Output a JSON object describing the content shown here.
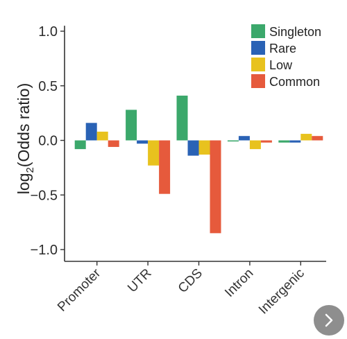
{
  "chart_data": {
    "type": "bar",
    "categories": [
      "Promoter",
      "UTR",
      "CDS",
      "Intron",
      "Intergenic"
    ],
    "series": [
      {
        "name": "Singleton",
        "color": "#3ba86b",
        "values": [
          -0.08,
          0.28,
          0.41,
          -0.01,
          -0.02
        ]
      },
      {
        "name": "Rare",
        "color": "#2a62b5",
        "values": [
          0.16,
          -0.03,
          -0.14,
          0.04,
          -0.02
        ]
      },
      {
        "name": "Low",
        "color": "#e8c21e",
        "values": [
          0.08,
          -0.23,
          -0.13,
          -0.08,
          0.06
        ]
      },
      {
        "name": "Common",
        "color": "#e65a3c",
        "values": [
          -0.06,
          -0.49,
          -0.85,
          -0.02,
          0.04
        ]
      }
    ],
    "ylabel_main": "log",
    "ylabel_sub": "2",
    "ylabel_rest": "(Odds ratio)",
    "ylim": [
      -1.05,
      1.05
    ],
    "yticks": [
      1.0,
      0.5,
      0.0,
      -0.5,
      -1.0
    ],
    "ytick_labels": [
      "1.0",
      "0.5",
      "0.0",
      "−0.5",
      "−1.0"
    ],
    "legend_position": "top-right",
    "grid": false
  },
  "nav": {
    "next_icon": "chevron-right-icon"
  }
}
